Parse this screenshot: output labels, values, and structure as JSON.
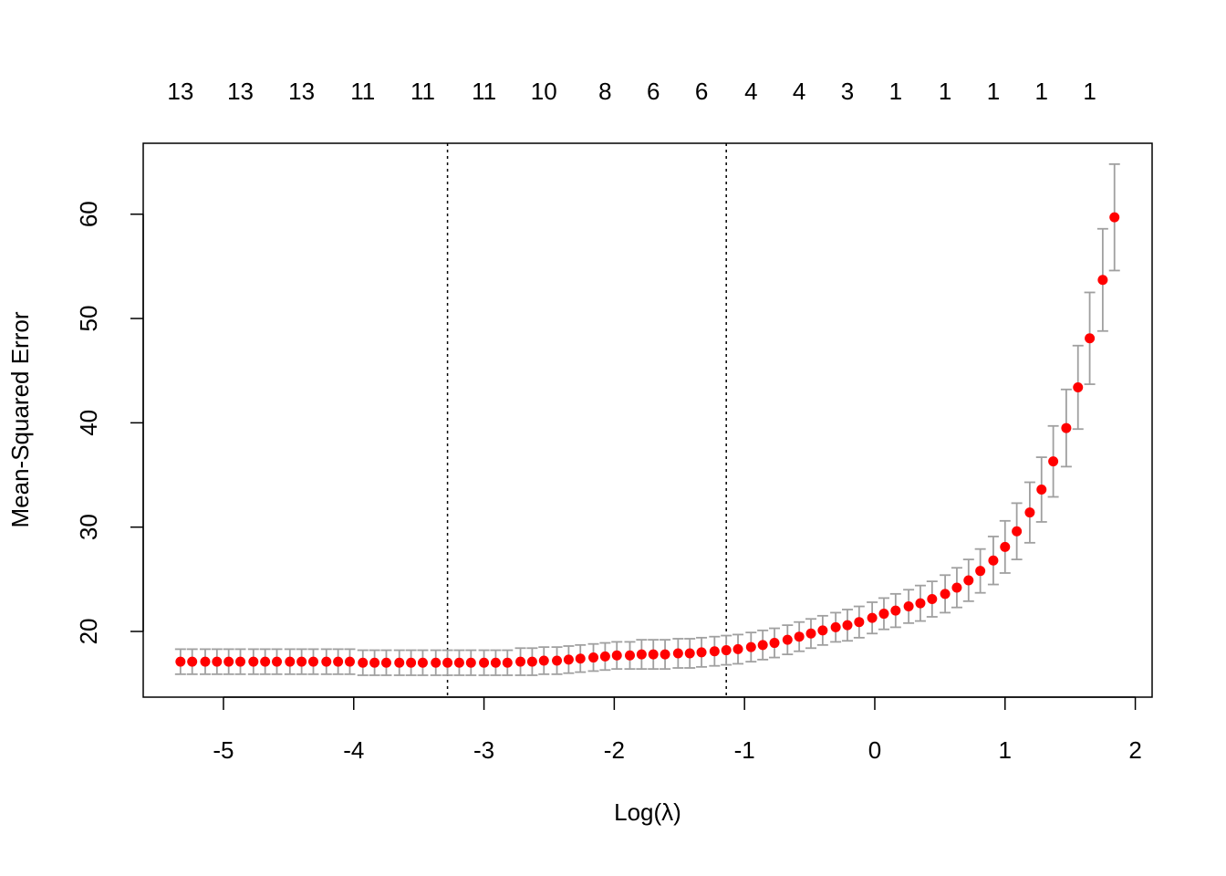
{
  "chart_data": {
    "type": "errorbar-scatter",
    "xlabel": "Log(λ)",
    "ylabel": "Mean-Squared Error",
    "xlim": [
      -5.616,
      2.129
    ],
    "ylim": [
      13.7,
      66.8
    ],
    "xticks": [
      -5,
      -4,
      -3,
      -2,
      -1,
      0,
      1,
      2
    ],
    "yticks": [
      20,
      30,
      40,
      50,
      60
    ],
    "top_ticks": [
      {
        "value": -5.33,
        "label": "13"
      },
      {
        "value": -4.87,
        "label": "13"
      },
      {
        "value": -4.4,
        "label": "13"
      },
      {
        "value": -3.93,
        "label": "11"
      },
      {
        "value": -3.47,
        "label": "11"
      },
      {
        "value": -3.0,
        "label": "11"
      },
      {
        "value": -2.54,
        "label": "10"
      },
      {
        "value": -2.07,
        "label": "8"
      },
      {
        "value": -1.7,
        "label": "6"
      },
      {
        "value": -1.33,
        "label": "6"
      },
      {
        "value": -0.95,
        "label": "4"
      },
      {
        "value": -0.58,
        "label": "4"
      },
      {
        "value": -0.21,
        "label": "3"
      },
      {
        "value": 0.16,
        "label": "1"
      },
      {
        "value": 0.54,
        "label": "1"
      },
      {
        "value": 0.91,
        "label": "1"
      },
      {
        "value": 1.28,
        "label": "1"
      },
      {
        "value": 1.65,
        "label": "1"
      }
    ],
    "vlines": [
      -3.28,
      -1.14
    ],
    "x": [
      -5.33,
      -5.24,
      -5.14,
      -5.05,
      -4.96,
      -4.87,
      -4.77,
      -4.68,
      -4.59,
      -4.49,
      -4.4,
      -4.31,
      -4.21,
      -4.12,
      -4.03,
      -3.93,
      -3.84,
      -3.75,
      -3.65,
      -3.56,
      -3.47,
      -3.37,
      -3.28,
      -3.19,
      -3.1,
      -3.0,
      -2.91,
      -2.82,
      -2.72,
      -2.63,
      -2.54,
      -2.44,
      -2.35,
      -2.26,
      -2.16,
      -2.07,
      -1.98,
      -1.88,
      -1.79,
      -1.7,
      -1.61,
      -1.51,
      -1.42,
      -1.33,
      -1.23,
      -1.14,
      -1.05,
      -0.95,
      -0.86,
      -0.77,
      -0.67,
      -0.58,
      -0.49,
      -0.4,
      -0.3,
      -0.21,
      -0.12,
      -0.02,
      0.07,
      0.16,
      0.26,
      0.35,
      0.44,
      0.54,
      0.63,
      0.72,
      0.81,
      0.91,
      1.0,
      1.09,
      1.19,
      1.28,
      1.37,
      1.47,
      1.56,
      1.65,
      1.75,
      1.84
    ],
    "series": [
      {
        "color": "#ff0000",
        "error_color": "#a0a0a0",
        "values": [
          17.1,
          17.1,
          17.1,
          17.1,
          17.1,
          17.1,
          17.1,
          17.1,
          17.1,
          17.1,
          17.1,
          17.1,
          17.1,
          17.1,
          17.1,
          17.0,
          17.0,
          17.0,
          17.0,
          17.0,
          17.0,
          17.0,
          17.0,
          17.0,
          17.0,
          17.0,
          17.0,
          17.0,
          17.1,
          17.1,
          17.2,
          17.2,
          17.3,
          17.4,
          17.5,
          17.6,
          17.7,
          17.7,
          17.8,
          17.8,
          17.8,
          17.9,
          17.9,
          18.0,
          18.1,
          18.2,
          18.3,
          18.5,
          18.7,
          18.9,
          19.2,
          19.5,
          19.8,
          20.1,
          20.4,
          20.6,
          20.9,
          21.3,
          21.7,
          22.0,
          22.4,
          22.7,
          23.1,
          23.6,
          24.2,
          24.9,
          25.8,
          26.8,
          28.1,
          29.6,
          31.4,
          33.6,
          36.3,
          39.5,
          43.4,
          48.1,
          53.7,
          59.7
        ],
        "errors": [
          1.2,
          1.2,
          1.2,
          1.2,
          1.2,
          1.2,
          1.2,
          1.2,
          1.2,
          1.2,
          1.2,
          1.2,
          1.2,
          1.2,
          1.2,
          1.2,
          1.2,
          1.2,
          1.2,
          1.2,
          1.2,
          1.2,
          1.2,
          1.2,
          1.2,
          1.2,
          1.2,
          1.2,
          1.3,
          1.3,
          1.3,
          1.3,
          1.3,
          1.3,
          1.3,
          1.3,
          1.3,
          1.3,
          1.4,
          1.4,
          1.4,
          1.4,
          1.4,
          1.4,
          1.4,
          1.4,
          1.4,
          1.4,
          1.4,
          1.4,
          1.4,
          1.4,
          1.4,
          1.4,
          1.4,
          1.5,
          1.5,
          1.5,
          1.5,
          1.6,
          1.6,
          1.7,
          1.7,
          1.8,
          1.9,
          2.0,
          2.1,
          2.3,
          2.5,
          2.7,
          2.9,
          3.1,
          3.4,
          3.7,
          4.0,
          4.4,
          4.9,
          5.1
        ]
      }
    ]
  }
}
